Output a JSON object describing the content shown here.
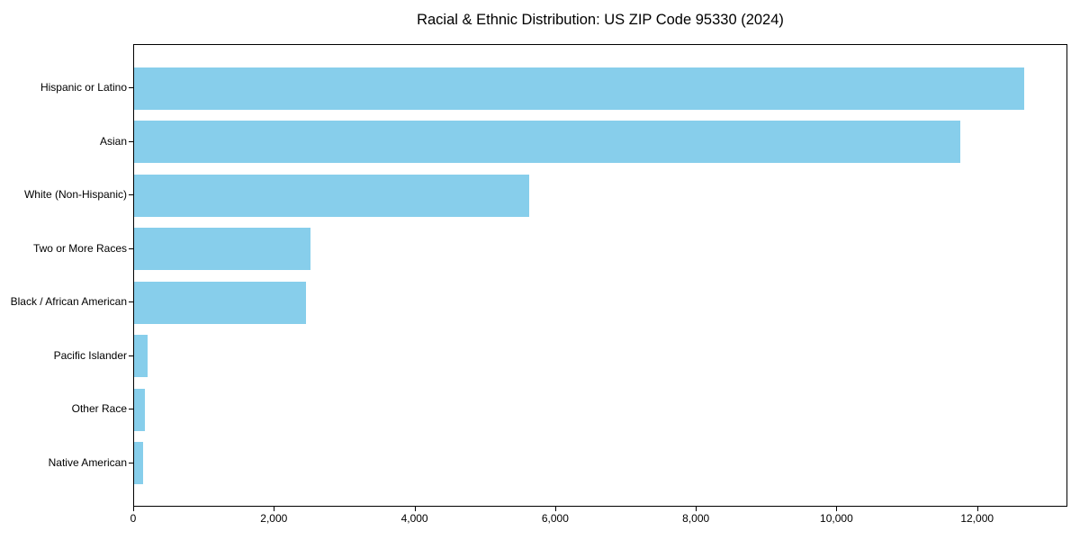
{
  "chart_data": {
    "type": "bar",
    "orientation": "horizontal",
    "title": "Racial & Ethnic Distribution: US ZIP Code 95330 (2024)",
    "categories": [
      "Hispanic or Latino",
      "Asian",
      "White (Non-Hispanic)",
      "Two or More Races",
      "Black / African American",
      "Pacific Islander",
      "Other Race",
      "Native American"
    ],
    "values": [
      12650,
      11750,
      5620,
      2510,
      2440,
      185,
      150,
      130
    ],
    "xlabel": "",
    "ylabel": "",
    "xlim": [
      0,
      13283
    ],
    "xticks": [
      0,
      2000,
      4000,
      6000,
      8000,
      10000,
      12000
    ],
    "xtick_labels": [
      "0",
      "2,000",
      "4,000",
      "6,000",
      "8,000",
      "10,000",
      "12,000"
    ],
    "bar_color": "#87CEEB",
    "background_color": "#FFFFFF",
    "text_color": "#000000",
    "grid": false,
    "legend": "none"
  }
}
